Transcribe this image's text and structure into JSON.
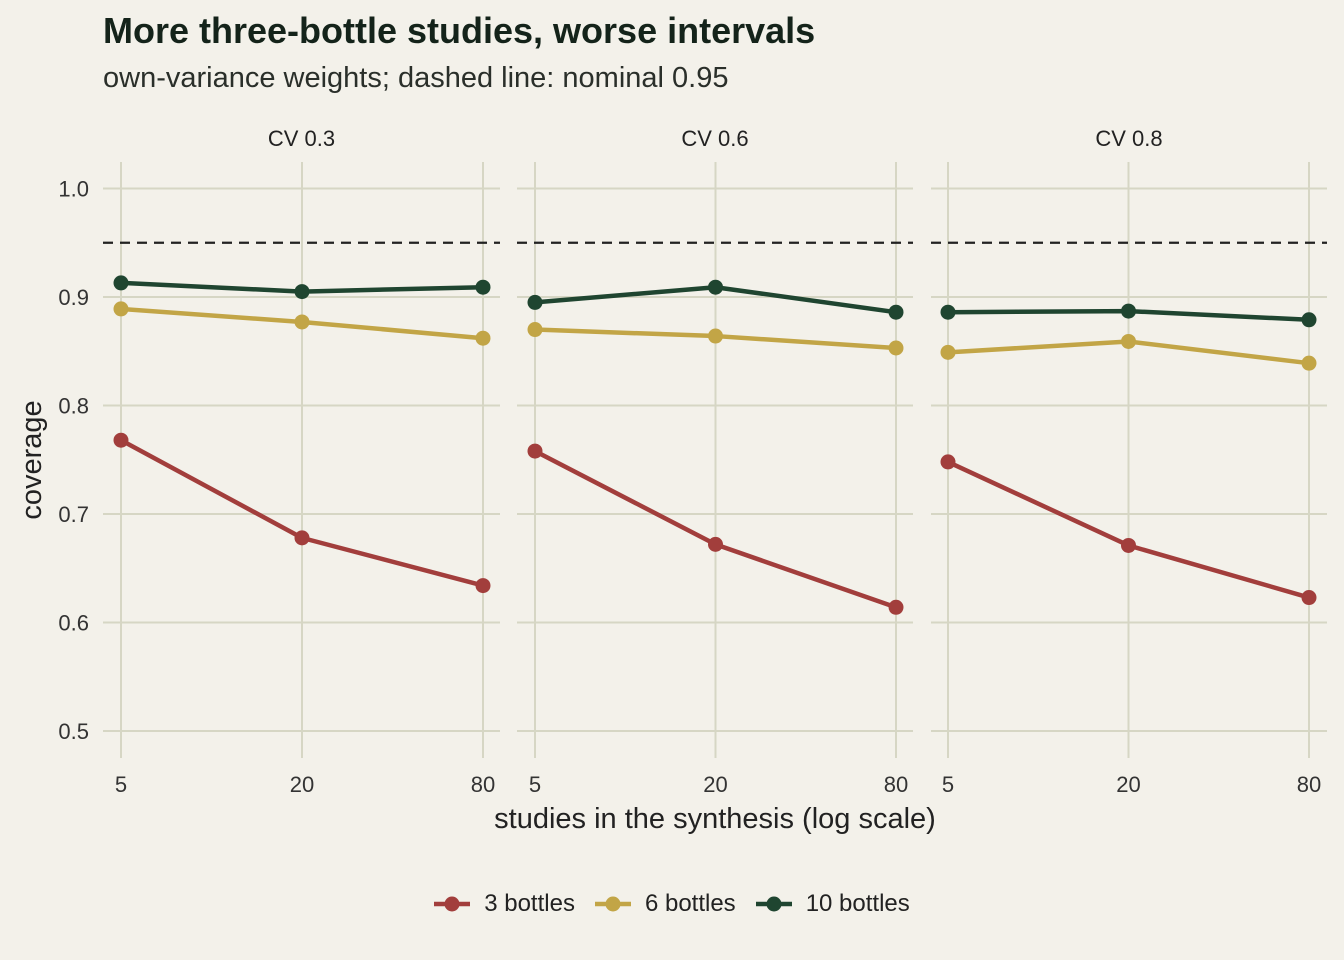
{
  "title": "More three-bottle studies, worse intervals",
  "subtitle": "own-variance weights; dashed line: nominal 0.95",
  "chart_data": {
    "type": "line",
    "xlabel": "studies in the synthesis (log scale)",
    "ylabel": "coverage",
    "x_scale": "log",
    "x": [
      5,
      20,
      80
    ],
    "x_tick_labels": [
      "5",
      "20",
      "80"
    ],
    "ylim": [
      0.48,
      1.02
    ],
    "y_ticks": [
      0.5,
      0.6,
      0.7,
      0.8,
      0.9,
      1.0
    ],
    "y_tick_labels": [
      "0.5",
      "0.6",
      "0.7",
      "0.8",
      "0.9",
      "1.0"
    ],
    "reference_line": 0.95,
    "grid": true,
    "legend_position": "bottom",
    "series_colors": {
      "3 bottles": "#a23e3c",
      "6 bottles": "#c2a546",
      "10 bottles": "#1f4530"
    },
    "legend": [
      "3 bottles",
      "6 bottles",
      "10 bottles"
    ],
    "facets": [
      {
        "label": "CV 0.3",
        "series": [
          {
            "name": "3 bottles",
            "values": [
              0.768,
              0.678,
              0.634
            ]
          },
          {
            "name": "6 bottles",
            "values": [
              0.889,
              0.877,
              0.862
            ]
          },
          {
            "name": "10 bottles",
            "values": [
              0.913,
              0.905,
              0.909
            ]
          }
        ]
      },
      {
        "label": "CV 0.6",
        "series": [
          {
            "name": "3 bottles",
            "values": [
              0.758,
              0.672,
              0.614
            ]
          },
          {
            "name": "6 bottles",
            "values": [
              0.87,
              0.864,
              0.853
            ]
          },
          {
            "name": "10 bottles",
            "values": [
              0.895,
              0.909,
              0.886
            ]
          }
        ]
      },
      {
        "label": "CV 0.8",
        "series": [
          {
            "name": "3 bottles",
            "values": [
              0.748,
              0.671,
              0.623
            ]
          },
          {
            "name": "6 bottles",
            "values": [
              0.849,
              0.859,
              0.839
            ]
          },
          {
            "name": "10 bottles",
            "values": [
              0.886,
              0.887,
              0.879
            ]
          }
        ]
      }
    ]
  }
}
